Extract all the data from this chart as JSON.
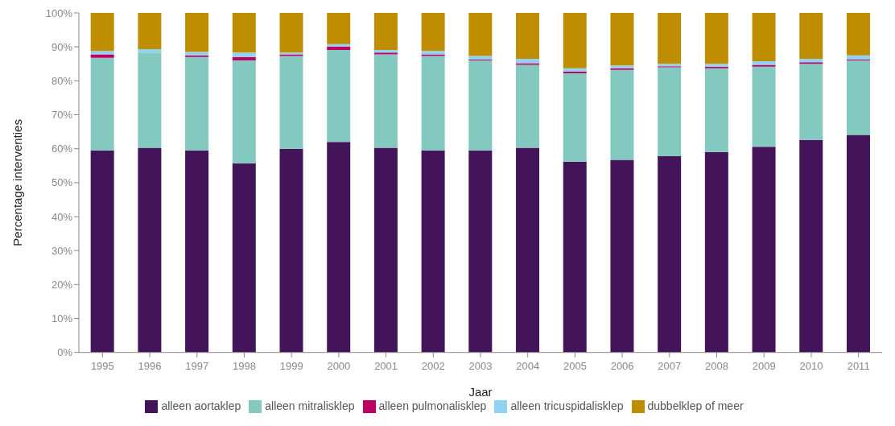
{
  "chart_data": {
    "type": "bar",
    "stacked": true,
    "xlabel": "Jaar",
    "ylabel": "Percentage interventies",
    "categories": [
      "1995",
      "1996",
      "1997",
      "1998",
      "1999",
      "2000",
      "2001",
      "2002",
      "2003",
      "2004",
      "2005",
      "2006",
      "2007",
      "2008",
      "2009",
      "2010",
      "2011"
    ],
    "series": [
      {
        "name": "alleen aortaklep",
        "color": "#43145a",
        "values": [
          59.5,
          60.3,
          59.5,
          55.7,
          60.0,
          62.0,
          60.3,
          59.5,
          59.5,
          60.3,
          56.2,
          56.7,
          57.8,
          59.0,
          60.6,
          62.6,
          64.1
        ]
      },
      {
        "name": "alleen mitralisklep",
        "color": "#84c9bf",
        "values": [
          27.3,
          28.0,
          27.5,
          30.3,
          27.3,
          27.1,
          27.5,
          27.8,
          26.5,
          24.4,
          26.0,
          26.5,
          26.2,
          24.7,
          23.6,
          22.4,
          21.9
        ]
      },
      {
        "name": "alleen pulmonalisklep",
        "color": "#be0064",
        "values": [
          1.0,
          0,
          0.5,
          1.0,
          0.5,
          1.0,
          0.5,
          0.5,
          0.3,
          0.5,
          0.5,
          0.5,
          0.3,
          0.5,
          0.5,
          0.5,
          0.3
        ]
      },
      {
        "name": "alleen tricuspidalisklep",
        "color": "#93d1f2",
        "values": [
          1.0,
          1.0,
          1.0,
          1.3,
          0.5,
          0.7,
          0.8,
          1.0,
          1.0,
          1.3,
          1.0,
          0.8,
          0.7,
          0.8,
          1.1,
          1.0,
          1.2
        ]
      },
      {
        "name": "dubbelklep of meer",
        "color": "#bf8e00",
        "values": [
          11.2,
          10.7,
          11.5,
          11.7,
          11.7,
          9.2,
          10.9,
          11.2,
          12.7,
          13.5,
          16.3,
          15.5,
          15.0,
          15.0,
          14.2,
          13.5,
          12.5
        ]
      }
    ],
    "ylim": [
      0,
      100
    ],
    "yticks": [
      {
        "value": 0,
        "label": "0%"
      },
      {
        "value": 10,
        "label": "10%"
      },
      {
        "value": 20,
        "label": "20%"
      },
      {
        "value": 30,
        "label": "30%"
      },
      {
        "value": 40,
        "label": "40%"
      },
      {
        "value": 50,
        "label": "50%"
      },
      {
        "value": 60,
        "label": "60%"
      },
      {
        "value": 70,
        "label": "70%"
      },
      {
        "value": 80,
        "label": "80%"
      },
      {
        "value": 90,
        "label": "90%"
      },
      {
        "value": 100,
        "label": "100%"
      }
    ],
    "grid": false,
    "legend": "bottom"
  }
}
